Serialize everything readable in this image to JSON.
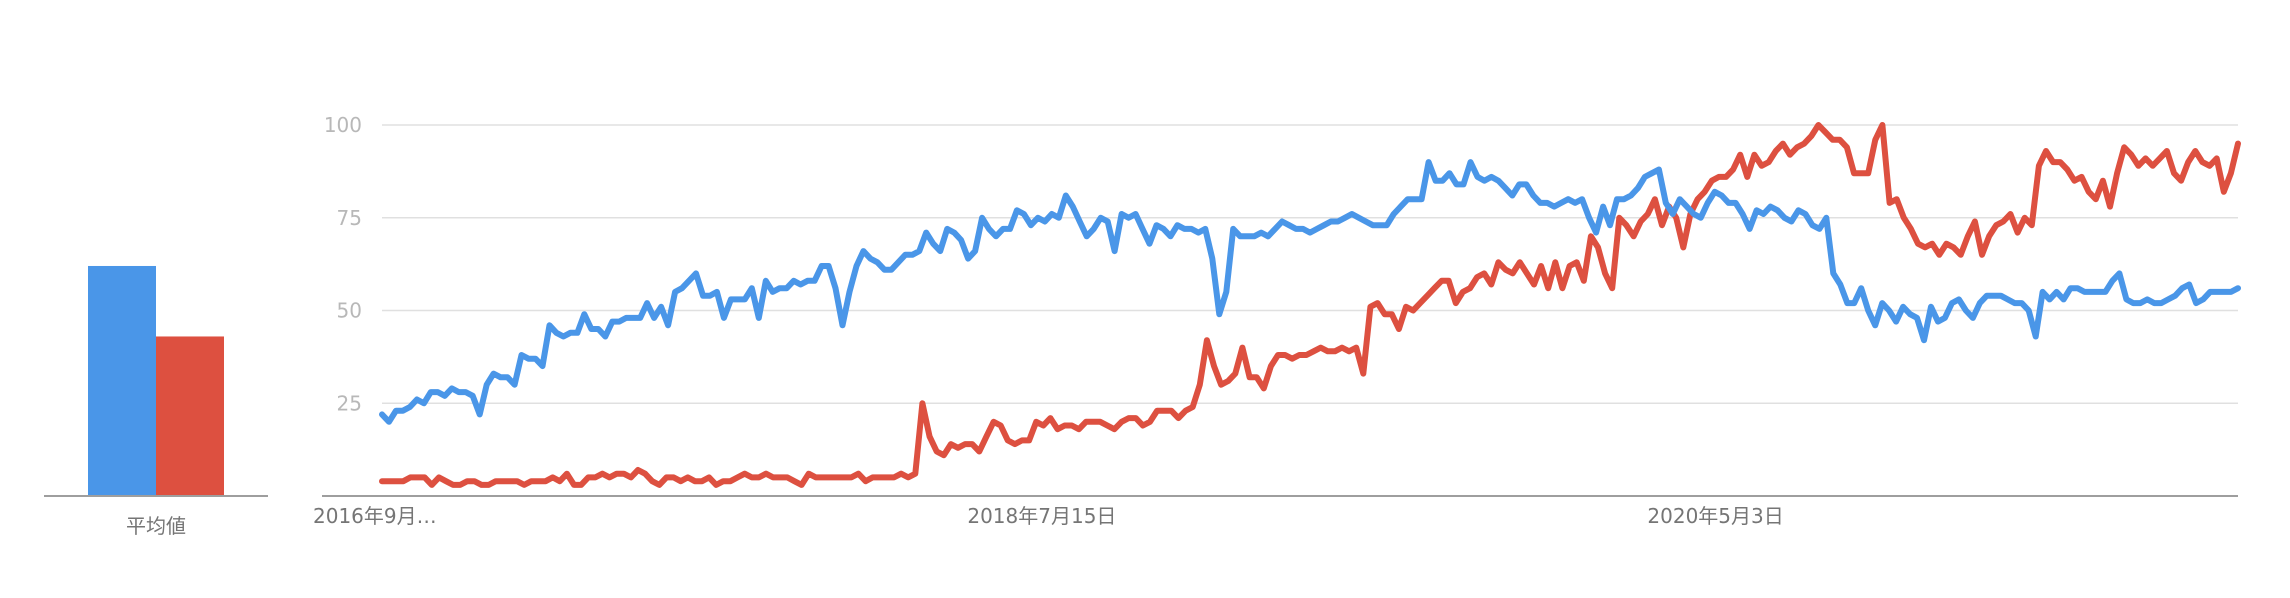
{
  "colors": {
    "series_1": "#4a96e8",
    "series_2": "#dd5040",
    "grid": "#e0e0e0",
    "axis": "#9e9e9e"
  },
  "average_panel": {
    "label": "平均値",
    "values": [
      62,
      43
    ]
  },
  "chart_data": {
    "type": "line",
    "title": "",
    "xlabel": "",
    "ylabel": "",
    "ylim": [
      0,
      100
    ],
    "yticks": [
      25,
      50,
      75,
      100
    ],
    "grid": true,
    "xticks": [
      {
        "label": "2016年9月…",
        "x": 0
      },
      {
        "label": "2018年7月15日",
        "x": 96
      },
      {
        "label": "2020年5月3日",
        "x": 194
      }
    ],
    "x_range": [
      0,
      270
    ],
    "series": [
      {
        "color": "#4a96e8",
        "values": [
          22,
          20,
          23,
          23,
          24,
          26,
          25,
          28,
          28,
          27,
          29,
          28,
          28,
          27,
          22,
          30,
          33,
          32,
          32,
          30,
          38,
          37,
          37,
          35,
          46,
          44,
          43,
          44,
          44,
          49,
          45,
          45,
          43,
          47,
          47,
          48,
          48,
          48,
          52,
          48,
          51,
          46,
          55,
          56,
          58,
          60,
          54,
          54,
          55,
          48,
          53,
          53,
          53,
          56,
          48,
          58,
          55,
          56,
          56,
          58,
          57,
          58,
          58,
          62,
          62,
          56,
          46,
          55,
          62,
          66,
          64,
          63,
          61,
          61,
          63,
          65,
          65,
          66,
          71,
          68,
          66,
          72,
          71,
          69,
          64,
          66,
          75,
          72,
          70,
          72,
          72,
          77,
          76,
          73,
          75,
          74,
          76,
          75,
          81,
          78,
          74,
          70,
          72,
          75,
          74,
          66,
          76,
          75,
          76,
          72,
          68,
          73,
          72,
          70,
          73,
          72,
          72,
          71,
          72,
          64,
          49,
          55,
          72,
          70,
          70,
          70,
          71,
          70,
          72,
          74,
          73,
          72,
          72,
          71,
          72,
          73,
          74,
          74,
          75,
          76,
          75,
          74,
          73,
          73,
          73,
          76,
          78,
          80,
          80,
          80,
          90,
          85,
          85,
          87,
          84,
          84,
          90,
          86,
          85,
          86,
          85,
          83,
          81,
          84,
          84,
          81,
          79,
          79,
          78,
          79,
          80,
          79,
          80,
          75,
          71,
          78,
          73,
          80,
          80,
          81,
          83,
          86,
          87,
          88,
          79,
          76,
          80,
          78,
          76,
          75,
          79,
          82,
          81,
          79,
          79,
          76,
          72,
          77,
          76,
          78,
          77,
          75,
          74,
          77,
          76,
          73,
          72,
          75,
          60,
          57,
          52,
          52,
          56,
          50,
          46,
          52,
          50,
          47,
          51,
          49,
          48,
          42,
          51,
          47,
          48,
          52,
          53,
          50,
          48,
          52,
          54,
          54,
          54,
          53,
          52,
          52,
          50,
          43,
          55,
          53,
          55,
          53,
          56,
          56,
          55,
          55,
          55,
          55,
          58,
          60,
          53,
          52,
          52,
          53,
          52,
          52,
          53,
          54,
          56,
          57,
          52,
          53,
          55,
          55,
          55,
          55,
          56
        ]
      },
      {
        "color": "#dd5040",
        "values": [
          4,
          4,
          4,
          4,
          5,
          5,
          5,
          3,
          5,
          4,
          3,
          3,
          4,
          4,
          3,
          3,
          4,
          4,
          4,
          4,
          3,
          4,
          4,
          4,
          5,
          4,
          6,
          3,
          3,
          5,
          5,
          6,
          5,
          6,
          6,
          5,
          7,
          6,
          4,
          3,
          5,
          5,
          4,
          5,
          4,
          4,
          5,
          3,
          4,
          4,
          5,
          6,
          5,
          5,
          6,
          5,
          5,
          5,
          4,
          3,
          6,
          5,
          5,
          5,
          5,
          5,
          5,
          6,
          4,
          5,
          5,
          5,
          5,
          6,
          5,
          6,
          25,
          16,
          12,
          11,
          14,
          13,
          14,
          14,
          12,
          16,
          20,
          19,
          15,
          14,
          15,
          15,
          20,
          19,
          21,
          18,
          19,
          19,
          18,
          20,
          20,
          20,
          19,
          18,
          20,
          21,
          21,
          19,
          20,
          23,
          23,
          23,
          21,
          23,
          24,
          30,
          42,
          35,
          30,
          31,
          33,
          40,
          32,
          32,
          29,
          35,
          38,
          38,
          37,
          38,
          38,
          39,
          40,
          39,
          39,
          40,
          39,
          40,
          33,
          51,
          52,
          49,
          49,
          45,
          51,
          50,
          52,
          54,
          56,
          58,
          58,
          52,
          55,
          56,
          59,
          60,
          57,
          63,
          61,
          60,
          63,
          60,
          57,
          62,
          56,
          63,
          56,
          62,
          63,
          58,
          70,
          67,
          60,
          56,
          75,
          73,
          70,
          74,
          76,
          80,
          73,
          78,
          75,
          67,
          76,
          80,
          82,
          85,
          86,
          86,
          88,
          92,
          86,
          92,
          89,
          90,
          93,
          95,
          92,
          94,
          95,
          97,
          100,
          98,
          96,
          96,
          94,
          87,
          87,
          87,
          96,
          100,
          79,
          80,
          75,
          72,
          68,
          67,
          68,
          65,
          68,
          67,
          65,
          70,
          74,
          65,
          70,
          73,
          74,
          76,
          71,
          75,
          73,
          89,
          93,
          90,
          90,
          88,
          85,
          86,
          82,
          80,
          85,
          78,
          87,
          94,
          92,
          89,
          91,
          89,
          91,
          93,
          87,
          85,
          90,
          93,
          90,
          89,
          91,
          82,
          87,
          95
        ]
      }
    ]
  }
}
